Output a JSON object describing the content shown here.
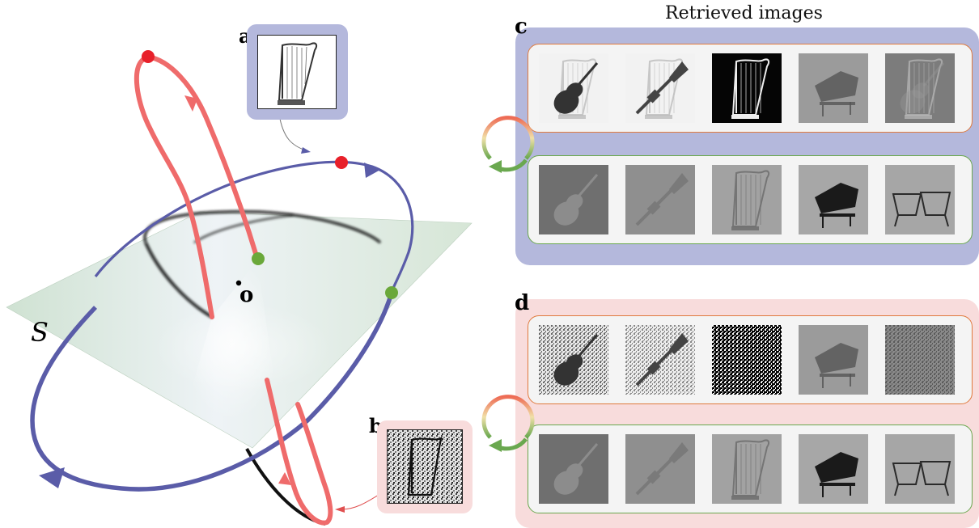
{
  "labels": {
    "a": "a",
    "b": "b",
    "c": "c",
    "d": "d",
    "plane": "S",
    "origin": "o"
  },
  "retrieved_title": "Retrieved images",
  "panel_c": {
    "rows": [
      {
        "edge": "orange",
        "items": [
          "violin-over-harp",
          "trumpet-over-harp",
          "harp-inverted",
          "piano-faint",
          "harp-ghost"
        ]
      },
      {
        "edge": "green",
        "items": [
          "violin-faint",
          "trumpet-faint",
          "harp-faint",
          "piano",
          "timpani"
        ]
      }
    ]
  },
  "panel_d": {
    "rows": [
      {
        "edge": "orange",
        "items": [
          "violin-noisy",
          "trumpet-noisy",
          "noise-bw",
          "piano-faint",
          "noise-gray"
        ]
      },
      {
        "edge": "green",
        "items": [
          "violin-faint",
          "trumpet-faint",
          "harp-faint",
          "piano",
          "timpani"
        ]
      }
    ]
  },
  "colors": {
    "red_orbit": "#ef6b6b",
    "blue_orbit": "#5a5ca8",
    "point_red": "#e8202a",
    "point_green": "#6aa83a",
    "plane": "#dbe8dc",
    "panel_c_bg": "#b4b8dc",
    "panel_d_bg": "#f8dcdc",
    "row_orange": "#e07a3e",
    "row_green": "#6aa84f"
  }
}
